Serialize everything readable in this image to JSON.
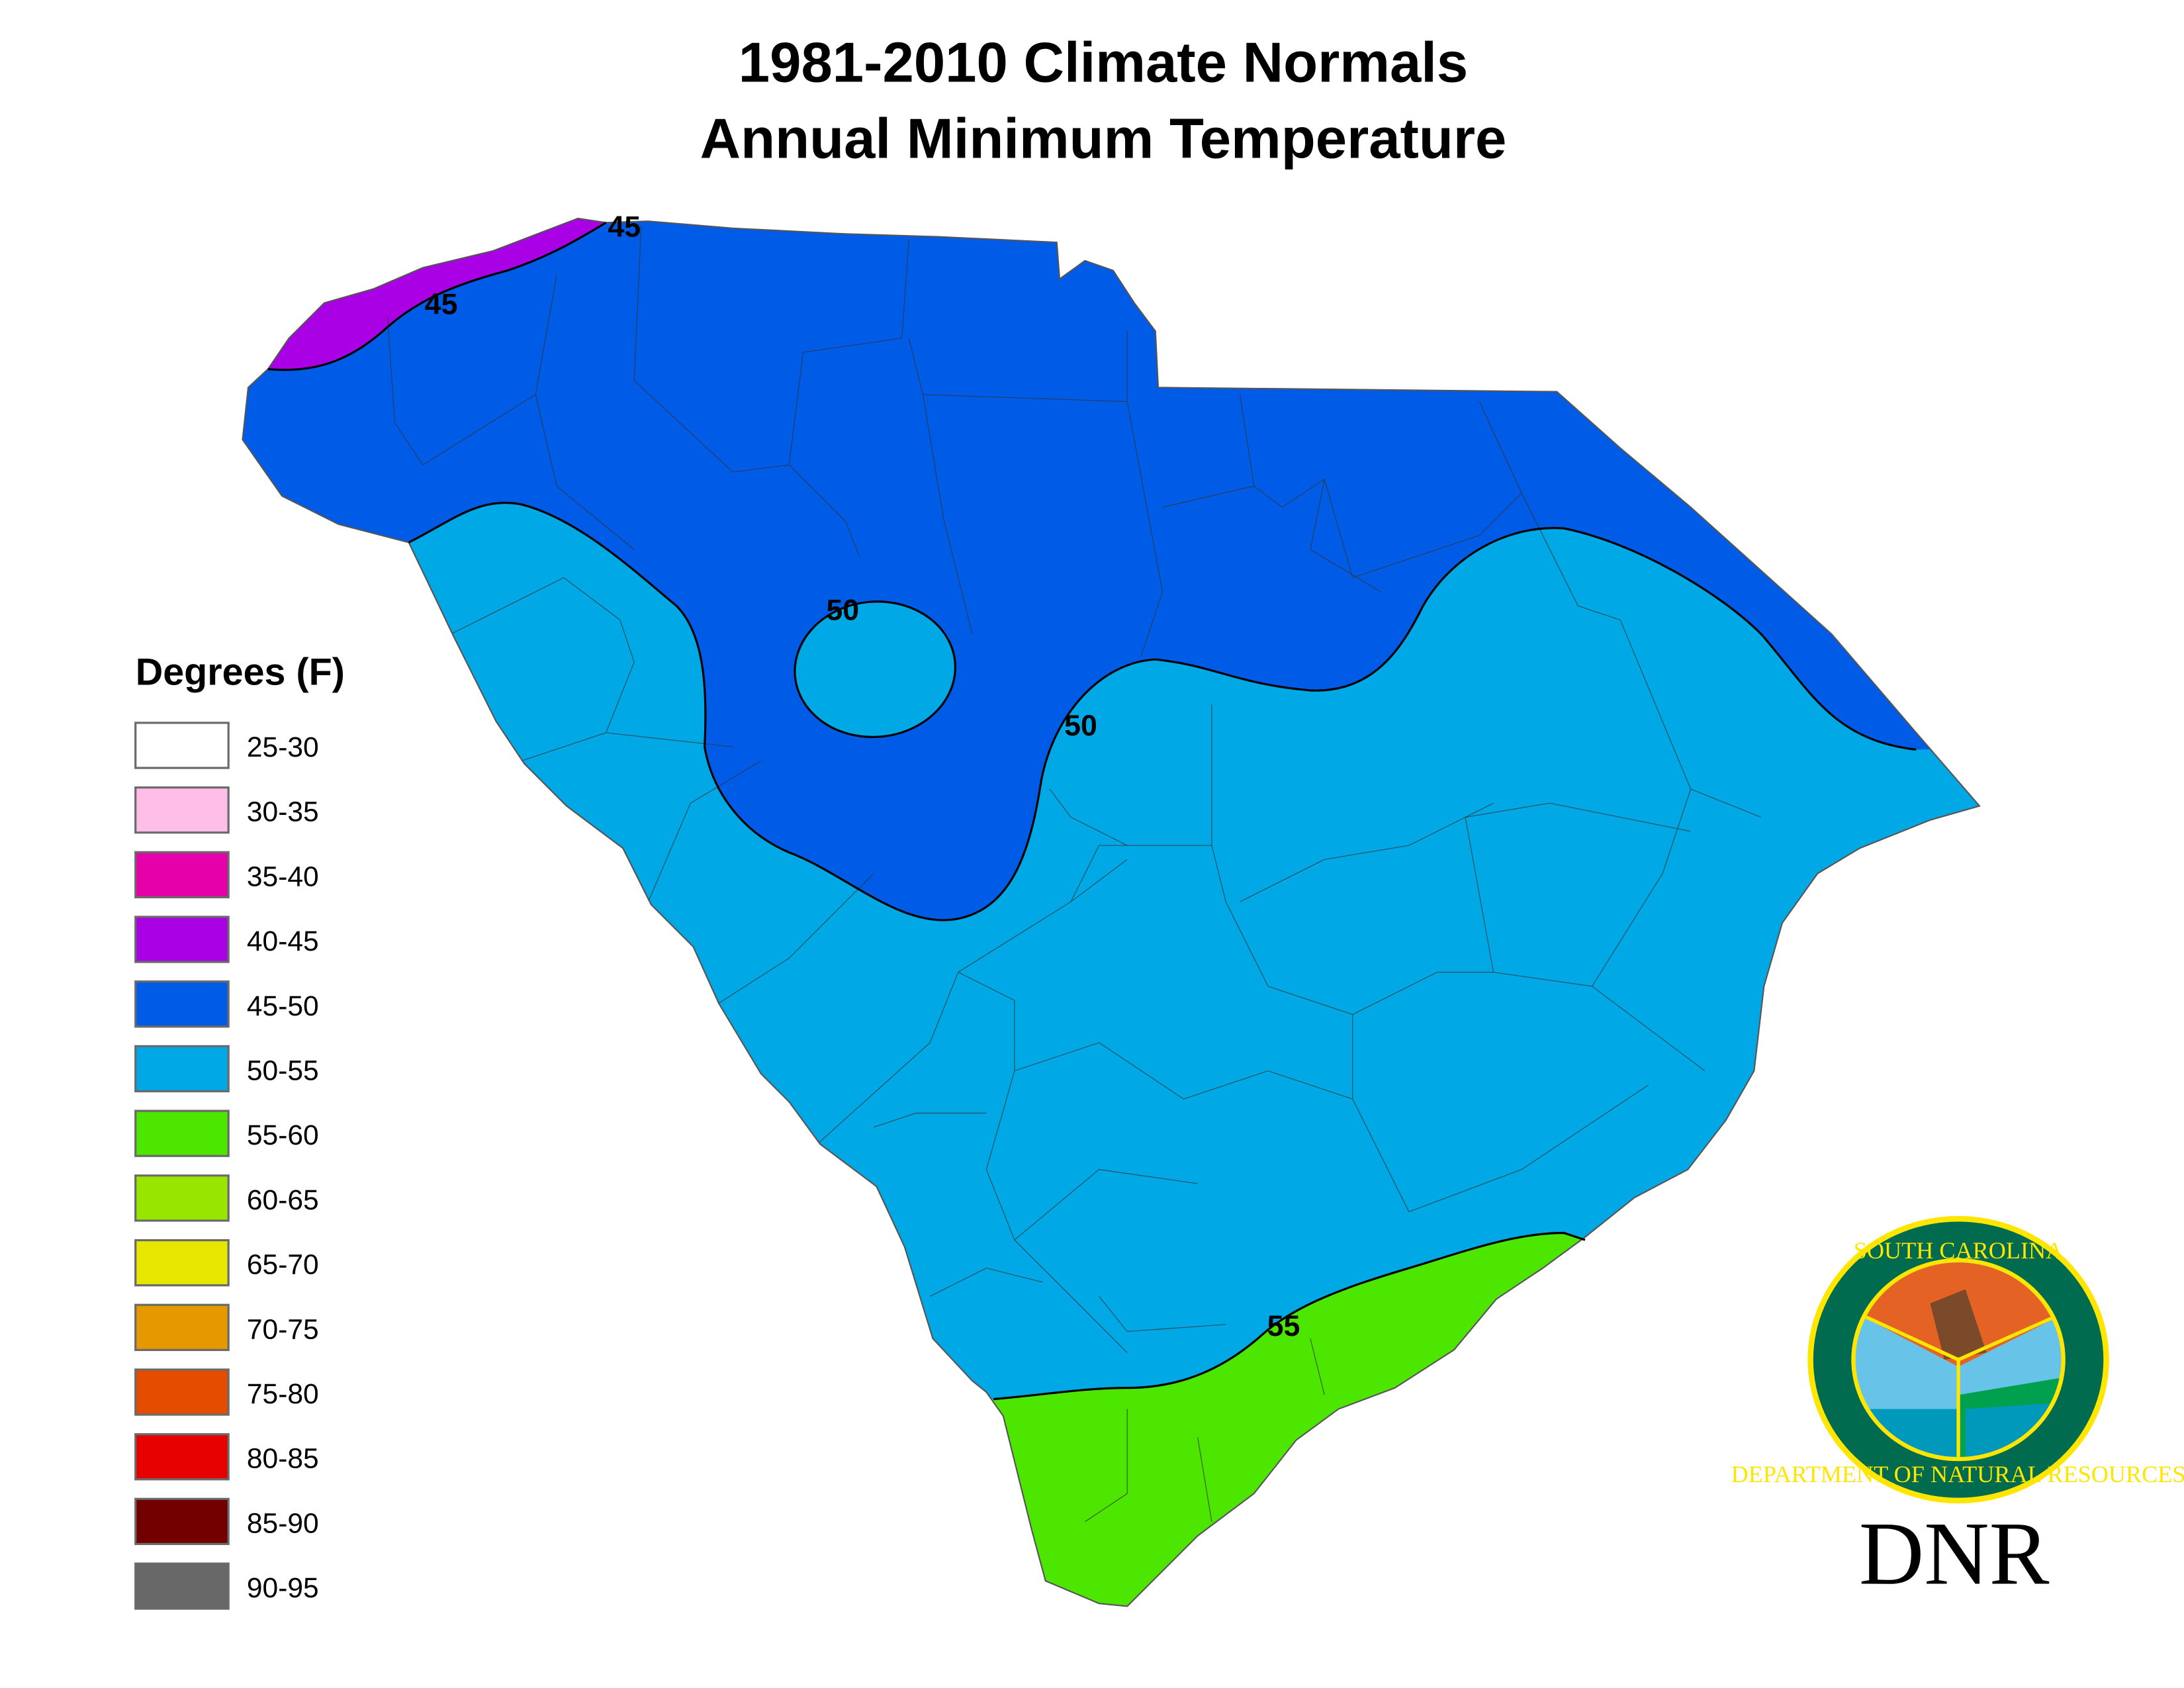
{
  "title": {
    "line1": "1981-2010 Climate Normals",
    "line2": "Annual Minimum Temperature"
  },
  "legend": {
    "title": "Degrees (F)",
    "items": [
      {
        "label": "25-30",
        "color": "#ffffff"
      },
      {
        "label": "30-35",
        "color": "#ffbee8"
      },
      {
        "label": "35-40",
        "color": "#e600a9"
      },
      {
        "label": "40-45",
        "color": "#a900e6"
      },
      {
        "label": "45-50",
        "color": "#005ce6"
      },
      {
        "label": "50-55",
        "color": "#00a9e6"
      },
      {
        "label": "55-60",
        "color": "#4ce600"
      },
      {
        "label": "60-65",
        "color": "#98e600"
      },
      {
        "label": "65-70",
        "color": "#e6e600"
      },
      {
        "label": "70-75",
        "color": "#e69800"
      },
      {
        "label": "75-80",
        "color": "#e64c00"
      },
      {
        "label": "80-85",
        "color": "#e60000"
      },
      {
        "label": "85-90",
        "color": "#730000"
      },
      {
        "label": "90-95",
        "color": "#686868"
      }
    ]
  },
  "map": {
    "contour_labels": [
      "45",
      "45",
      "50",
      "50",
      "55"
    ],
    "zones_present": [
      "40-45",
      "45-50",
      "50-55",
      "55-60"
    ]
  },
  "logo": {
    "top_text": "SOUTH CAROLINA",
    "bottom_text": "DEPARTMENT OF NATURAL RESOURCES",
    "acronym": "DNR"
  }
}
